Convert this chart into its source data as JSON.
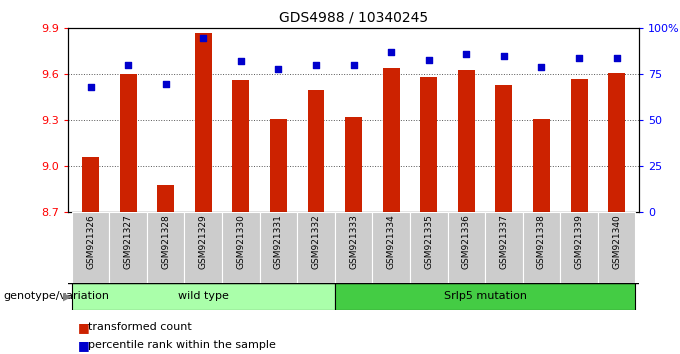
{
  "title": "GDS4988 / 10340245",
  "samples": [
    "GSM921326",
    "GSM921327",
    "GSM921328",
    "GSM921329",
    "GSM921330",
    "GSM921331",
    "GSM921332",
    "GSM921333",
    "GSM921334",
    "GSM921335",
    "GSM921336",
    "GSM921337",
    "GSM921338",
    "GSM921339",
    "GSM921340"
  ],
  "bar_values": [
    9.06,
    9.6,
    8.88,
    9.87,
    9.56,
    9.31,
    9.5,
    9.32,
    9.64,
    9.58,
    9.63,
    9.53,
    9.31,
    9.57,
    9.61
  ],
  "percentile_values": [
    68,
    80,
    70,
    95,
    82,
    78,
    80,
    80,
    87,
    83,
    86,
    85,
    79,
    84,
    84
  ],
  "bar_bottom": 8.7,
  "ylim_left": [
    8.7,
    9.9
  ],
  "ylim_right": [
    0,
    100
  ],
  "yticks_left": [
    8.7,
    9.0,
    9.3,
    9.6,
    9.9
  ],
  "yticks_right": [
    0,
    25,
    50,
    75,
    100
  ],
  "ytick_labels_right": [
    "0",
    "25",
    "50",
    "75",
    "100%"
  ],
  "bar_color": "#cc2200",
  "dot_color": "#0000cc",
  "group1_label": "wild type",
  "group2_label": "Srlp5 mutation",
  "group1_indices": [
    0,
    1,
    2,
    3,
    4,
    5,
    6
  ],
  "group2_indices": [
    7,
    8,
    9,
    10,
    11,
    12,
    13,
    14
  ],
  "group1_color": "#aaffaa",
  "group2_color": "#44cc44",
  "xtick_bg": "#cccccc",
  "legend_items": [
    "transformed count",
    "percentile rank within the sample"
  ],
  "legend_colors": [
    "#cc2200",
    "#0000cc"
  ],
  "xlabel_left": "genotype/variation"
}
